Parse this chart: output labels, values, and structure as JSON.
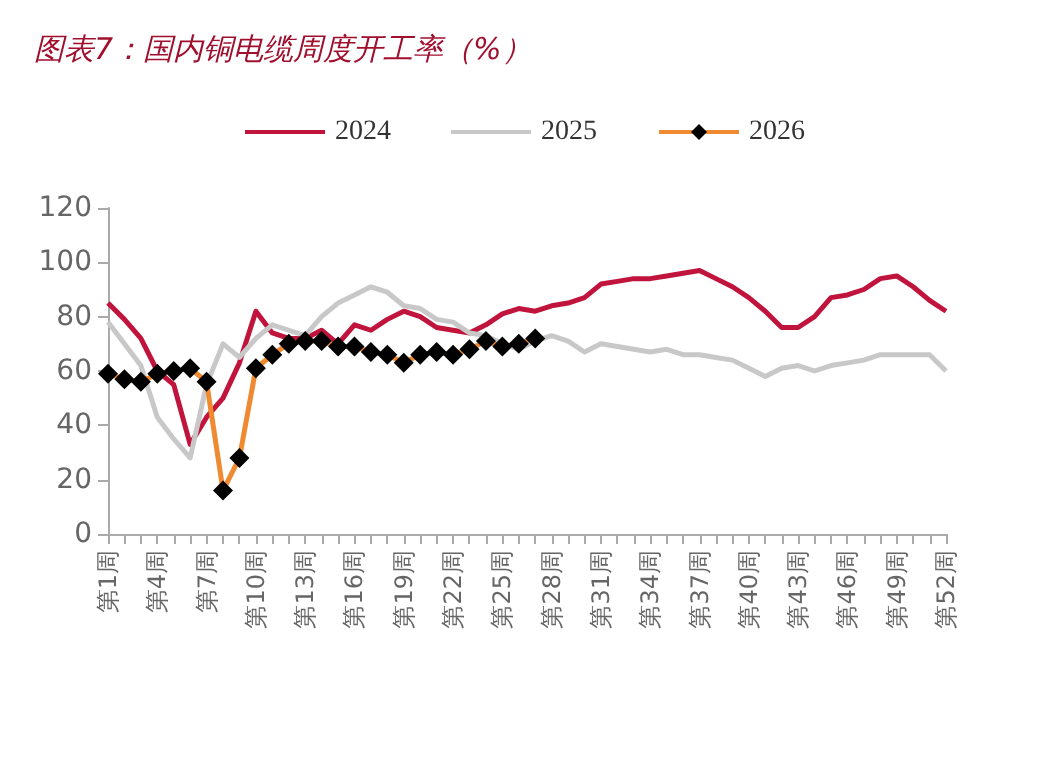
{
  "chart_data": {
    "type": "line",
    "title": "图表7：国内铜电缆周度开工率（%）",
    "categories": [
      "第1周",
      null,
      null,
      "第4周",
      null,
      null,
      "第7周",
      null,
      null,
      "第10周",
      null,
      null,
      "第13周",
      null,
      null,
      "第16周",
      null,
      null,
      "第19周",
      null,
      null,
      "第22周",
      null,
      null,
      "第25周",
      null,
      null,
      "第28周",
      null,
      null,
      "第31周",
      null,
      null,
      "第34周",
      null,
      null,
      "第37周",
      null,
      null,
      "第40周",
      null,
      null,
      "第43周",
      null,
      null,
      "第46周",
      null,
      null,
      "第49周",
      null,
      null,
      "第52周"
    ],
    "series": [
      {
        "name": "2024",
        "color": "#c0143c",
        "marker": "none",
        "values": [
          85,
          79,
          72,
          60,
          55,
          33,
          43,
          50,
          63,
          82,
          74,
          72,
          72,
          75,
          70,
          77,
          75,
          79,
          82,
          80,
          76,
          75,
          74,
          77,
          81,
          83,
          82,
          84,
          85,
          87,
          92,
          93,
          94,
          94,
          95,
          96,
          97,
          94,
          91,
          87,
          82,
          76,
          76,
          80,
          87,
          88,
          90,
          94,
          95,
          91,
          86,
          82
        ]
      },
      {
        "name": "2025",
        "color": "#c8c8c8",
        "marker": "none",
        "values": [
          78,
          70,
          62,
          43,
          35,
          28,
          55,
          70,
          65,
          72,
          77,
          75,
          73,
          80,
          85,
          88,
          91,
          89,
          84,
          83,
          79,
          78,
          74,
          73,
          70,
          68,
          71,
          73,
          71,
          67,
          70,
          69,
          68,
          67,
          68,
          66,
          66,
          65,
          64,
          61,
          58,
          61,
          62,
          60,
          62,
          63,
          64,
          66,
          66,
          66,
          66,
          60
        ]
      },
      {
        "name": "2026",
        "color": "#f08a30",
        "marker": "diamond",
        "colors": [
          "#000000",
          "#000000",
          "#000000",
          "#000000",
          "#000000",
          "#000000",
          "#000000",
          "#000000",
          "#000000",
          "#000000",
          "#000000",
          "#000000",
          "#000000",
          "#000000",
          "#000000",
          "#000000",
          "#000000",
          "#000000",
          "#000000",
          "#000000",
          "#000000",
          "#000000",
          "#000000",
          "#000000",
          "#000000",
          "#000000",
          "#000000",
          null,
          null,
          null,
          null,
          null,
          null,
          null,
          null,
          null,
          null,
          null,
          null,
          null,
          null,
          null,
          null,
          null,
          null,
          null,
          null,
          null,
          null,
          null,
          null,
          null
        ],
        "values": [
          59,
          57,
          56,
          59,
          60,
          61,
          56,
          16,
          28,
          61,
          66,
          70,
          71,
          71,
          69,
          69,
          67,
          66,
          63,
          66,
          67,
          66,
          68,
          71,
          69,
          70,
          72,
          null,
          null,
          null,
          null,
          null,
          null,
          null,
          null,
          null,
          null,
          null,
          null,
          null,
          null,
          null,
          null,
          null,
          null,
          null,
          null,
          null,
          null,
          null,
          null,
          null
        ]
      }
    ],
    "ylim": [
      0,
      120
    ],
    "yticks": [
      0,
      20,
      40,
      60,
      80,
      100,
      120
    ],
    "grid": false,
    "legend": "top"
  }
}
